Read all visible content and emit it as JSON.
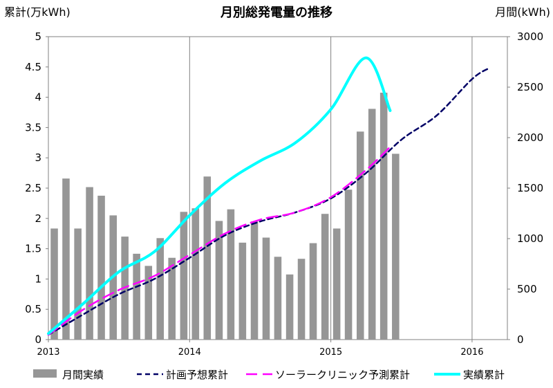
{
  "chart_data": {
    "type": "bar+line",
    "title": "月別総発電量の推移",
    "ylabel_left": "累計(万kWh)",
    "ylabel_right": "月間(kWh)",
    "ylim_left": [
      0,
      5
    ],
    "ylim_right": [
      0,
      3000
    ],
    "yticks_left": [
      "0",
      "0.5",
      "1",
      "1.5",
      "2",
      "2.5",
      "3",
      "3.5",
      "4",
      "4.5",
      "5"
    ],
    "yticks_right": [
      "0",
      "500",
      "1000",
      "1500",
      "2000",
      "2500",
      "3000"
    ],
    "x_range": [
      2013.0,
      2016.25
    ],
    "x_ticks": [
      {
        "value": 2013,
        "label": "2013"
      },
      {
        "value": 2014,
        "label": "2014"
      },
      {
        "value": 2015,
        "label": "2015"
      },
      {
        "value": 2016,
        "label": "2016"
      }
    ],
    "vertical_gridlines_at": [
      2014,
      2015,
      2016
    ],
    "legend_position": "bottom",
    "series": [
      {
        "name": "月間実績",
        "kind": "bar",
        "axis": "right",
        "color": "#969696",
        "x": [
          2013.0,
          2013.083,
          2013.167,
          2013.25,
          2013.333,
          2013.417,
          2013.5,
          2013.583,
          2013.667,
          2013.75,
          2013.833,
          2013.917,
          2014.0,
          2014.083,
          2014.167,
          2014.25,
          2014.333,
          2014.417,
          2014.5,
          2014.583,
          2014.667,
          2014.75,
          2014.833,
          2014.917,
          2015.0,
          2015.083,
          2015.167,
          2015.25,
          2015.333,
          2015.417
        ],
        "values": [
          1100,
          1595,
          1100,
          1510,
          1425,
          1230,
          1020,
          850,
          730,
          1005,
          810,
          1265,
          1300,
          1615,
          1175,
          1290,
          960,
          1170,
          1010,
          820,
          645,
          800,
          955,
          1245,
          1100,
          1485,
          2060,
          2285,
          2445,
          1840
        ]
      },
      {
        "name": "計画予想累計",
        "kind": "line",
        "axis": "left",
        "color": "#000066",
        "dash": "dash",
        "x": [
          2013.0,
          2013.25,
          2013.5,
          2013.75,
          2014.0,
          2014.25,
          2014.5,
          2014.75,
          2015.0,
          2015.25,
          2015.5,
          2015.75,
          2016.0,
          2016.12
        ],
        "values": [
          0.08,
          0.42,
          0.75,
          1.0,
          1.35,
          1.72,
          1.95,
          2.1,
          2.33,
          2.75,
          3.3,
          3.7,
          4.3,
          4.48
        ]
      },
      {
        "name": "ソーラークリニック予測累計",
        "kind": "line",
        "axis": "left",
        "color": "#ff00ff",
        "dash": "longdash",
        "x": [
          2013.0,
          2013.25,
          2013.5,
          2013.75,
          2014.0,
          2014.25,
          2014.5,
          2014.75,
          2015.0,
          2015.25,
          2015.42
        ],
        "values": [
          0.08,
          0.5,
          0.82,
          1.05,
          1.4,
          1.75,
          1.98,
          2.1,
          2.35,
          2.8,
          3.18
        ]
      },
      {
        "name": "実績累計",
        "kind": "line",
        "axis": "left",
        "color": "#00ffff",
        "dash": "solid",
        "x": [
          2013.0,
          2013.25,
          2013.5,
          2013.75,
          2014.0,
          2014.25,
          2014.5,
          2014.75,
          2015.0,
          2015.25,
          2015.42
        ],
        "values": [
          0.1,
          0.6,
          1.12,
          1.45,
          2.05,
          2.58,
          2.95,
          3.25,
          3.8,
          4.65,
          3.78
        ]
      }
    ]
  }
}
